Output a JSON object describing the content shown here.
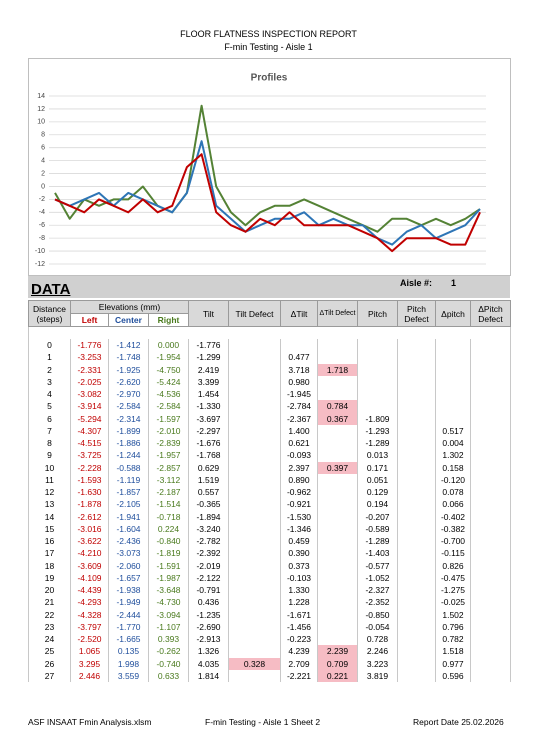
{
  "header": {
    "title": "FLOOR FLATNESS INSPECTION REPORT",
    "subtitle": "F-min Testing - Aisle 1"
  },
  "chart_data": {
    "type": "line",
    "title": "Profiles",
    "ylim": [
      -12,
      14
    ],
    "yticks": [
      14,
      12,
      10,
      8,
      6,
      4,
      2,
      0,
      -2,
      -4,
      -6,
      -8,
      -10,
      -12
    ],
    "grid": true,
    "series": [
      {
        "color": "#548235",
        "values": [
          -1,
          -5,
          -2,
          -3,
          -2,
          -2,
          0,
          -3,
          -4,
          -1,
          12.5,
          0,
          -4,
          -6,
          -4,
          -3,
          -3,
          -2,
          -3,
          -4,
          -5,
          -6,
          -7,
          -5,
          -5,
          -6,
          -5,
          -6,
          -5,
          -3.5
        ]
      },
      {
        "color": "#2e75b6",
        "values": [
          -2,
          -3,
          -2,
          -1,
          -3,
          -1,
          -2,
          -3,
          -4,
          -1,
          7,
          -3,
          -5,
          -7,
          -6,
          -5,
          -5,
          -4,
          -6,
          -5,
          -6,
          -6,
          -8,
          -9,
          -7,
          -6,
          -8,
          -7,
          -6,
          -3.5
        ]
      },
      {
        "color": "#c00000",
        "values": [
          -2,
          -3,
          -4,
          -2,
          -3,
          -4,
          -2,
          -4,
          -3,
          3,
          5,
          -4,
          -6,
          -7,
          -5,
          -6,
          -4,
          -6,
          -6,
          -6,
          -6,
          -7,
          -8,
          -10,
          -8,
          -8,
          -8,
          -9,
          -9,
          -4
        ]
      }
    ]
  },
  "aisle": {
    "label": "Aisle #:",
    "value": "1"
  },
  "section_title": "DATA",
  "table": {
    "headers": {
      "distance": "Distance (steps)",
      "elevations": "Elevations (mm)",
      "left": "Left",
      "center": "Center",
      "right": "Right",
      "tilt": "Tilt",
      "tilt_defect": "Tilt Defect",
      "d_tilt": "ΔTilt",
      "d_tilt_defect": "ΔTilt Defect",
      "pitch": "Pitch",
      "pitch_defect": "Pitch Defect",
      "d_pitch": "Δpitch",
      "d_pitch_defect": "ΔPitch Defect"
    },
    "rows": [
      [
        0,
        "-1.776",
        "-1.412",
        "0.000",
        "-1.776",
        null,
        null,
        null,
        null,
        null,
        null,
        null
      ],
      [
        1,
        "-3.253",
        "-1.748",
        "-1.954",
        "-1.299",
        null,
        "0.477",
        null,
        null,
        null,
        null,
        null
      ],
      [
        2,
        "-2.331",
        "-1.925",
        "-4.750",
        "2.419",
        null,
        "3.718",
        "1.718",
        null,
        null,
        null,
        null
      ],
      [
        3,
        "-2.025",
        "-2.620",
        "-5.424",
        "3.399",
        null,
        "0.980",
        null,
        null,
        null,
        null,
        null
      ],
      [
        4,
        "-3.082",
        "-2.970",
        "-4.536",
        "1.454",
        null,
        "-1.945",
        null,
        null,
        null,
        null,
        null
      ],
      [
        5,
        "-3.914",
        "-2.584",
        "-2.584",
        "-1.330",
        null,
        "-2.784",
        "0.784",
        null,
        null,
        null,
        null
      ],
      [
        6,
        "-5.294",
        "-2.314",
        "-1.597",
        "-3.697",
        null,
        "-2.367",
        "0.367",
        "-1.809",
        null,
        null,
        null
      ],
      [
        7,
        "-4.307",
        "-1.899",
        "-2.010",
        "-2.297",
        null,
        "1.400",
        null,
        "-1.293",
        null,
        "0.517",
        null
      ],
      [
        8,
        "-4.515",
        "-1.886",
        "-2.839",
        "-1.676",
        null,
        "0.621",
        null,
        "-1.289",
        null,
        "0.004",
        null
      ],
      [
        9,
        "-3.725",
        "-1.244",
        "-1.957",
        "-1.768",
        null,
        "-0.093",
        null,
        "0.013",
        null,
        "1.302",
        null
      ],
      [
        10,
        "-2.228",
        "-0.588",
        "-2.857",
        "0.629",
        null,
        "2.397",
        "0.397",
        "0.171",
        null,
        "0.158",
        null
      ],
      [
        11,
        "-1.593",
        "-1.119",
        "-3.112",
        "1.519",
        null,
        "0.890",
        null,
        "0.051",
        null,
        "-0.120",
        null
      ],
      [
        12,
        "-1.630",
        "-1.857",
        "-2.187",
        "0.557",
        null,
        "-0.962",
        null,
        "0.129",
        null,
        "0.078",
        null
      ],
      [
        13,
        "-1.878",
        "-2.105",
        "-1.514",
        "-0.365",
        null,
        "-0.921",
        null,
        "0.194",
        null,
        "0.066",
        null
      ],
      [
        14,
        "-2.612",
        "-1.941",
        "-0.718",
        "-1.894",
        null,
        "-1.530",
        null,
        "-0.207",
        null,
        "-0.402",
        null
      ],
      [
        15,
        "-3.016",
        "-1.604",
        "0.224",
        "-3.240",
        null,
        "-1.346",
        null,
        "-0.589",
        null,
        "-0.382",
        null
      ],
      [
        16,
        "-3.622",
        "-2.436",
        "-0.840",
        "-2.782",
        null,
        "0.459",
        null,
        "-1.289",
        null,
        "-0.700",
        null
      ],
      [
        17,
        "-4.210",
        "-3.073",
        "-1.819",
        "-2.392",
        null,
        "0.390",
        null,
        "-1.403",
        null,
        "-0.115",
        null
      ],
      [
        18,
        "-3.609",
        "-2.060",
        "-1.591",
        "-2.019",
        null,
        "0.373",
        null,
        "-0.577",
        null,
        "0.826",
        null
      ],
      [
        19,
        "-4.109",
        "-1.657",
        "-1.987",
        "-2.122",
        null,
        "-0.103",
        null,
        "-1.052",
        null,
        "-0.475",
        null
      ],
      [
        20,
        "-4.439",
        "-1.938",
        "-3.648",
        "-0.791",
        null,
        "1.330",
        null,
        "-2.327",
        null,
        "-1.275",
        null
      ],
      [
        21,
        "-4.293",
        "-1.949",
        "-4.730",
        "0.436",
        null,
        "1.228",
        null,
        "-2.352",
        null,
        "-0.025",
        null
      ],
      [
        22,
        "-4.328",
        "-2.444",
        "-3.094",
        "-1.235",
        null,
        "-1.671",
        null,
        "-0.850",
        null,
        "1.502",
        null
      ],
      [
        23,
        "-3.797",
        "-1.770",
        "-1.107",
        "-2.690",
        null,
        "-1.456",
        null,
        "-0.054",
        null,
        "0.796",
        null
      ],
      [
        24,
        "-2.520",
        "-1.665",
        "0.393",
        "-2.913",
        null,
        "-0.223",
        null,
        "0.728",
        null,
        "0.782",
        null
      ],
      [
        25,
        "1.065",
        "0.135",
        "-0.262",
        "1.326",
        null,
        "4.239",
        "2.239",
        "2.246",
        null,
        "1.518",
        null
      ],
      [
        26,
        "3.295",
        "1.998",
        "-0.740",
        "4.035",
        "0.328",
        "2.709",
        "0.709",
        "3.223",
        null,
        "0.977",
        null
      ],
      [
        27,
        "2.446",
        "3.559",
        "0.633",
        "1.814",
        null,
        "-2.221",
        "0.221",
        "3.819",
        null,
        "0.596",
        null
      ]
    ]
  },
  "footer": {
    "file": "ASF INSAAT Fmin Analysis.xlsm",
    "sheet": "F-min Testing - Aisle 1  Sheet 2",
    "date": "Report Date 25.02.2026"
  }
}
